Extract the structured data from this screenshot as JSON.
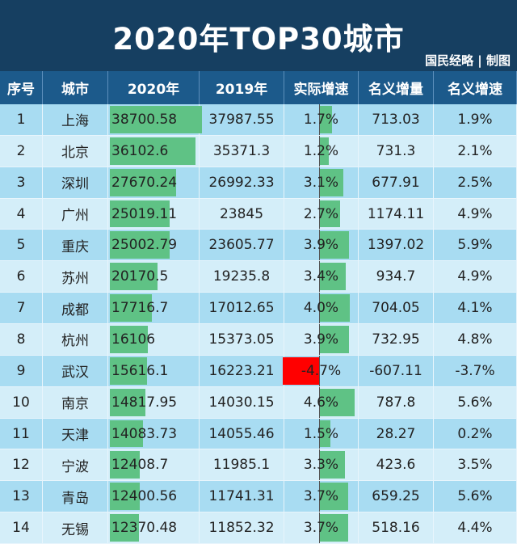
{
  "title": "2020年TOP30城市",
  "credit": "国民经略 | 制图",
  "headers": [
    "序号",
    "城市",
    "2020年",
    "2019年",
    "实际增速",
    "名义增量",
    "名义增速"
  ],
  "colors": {
    "positive_bar": "#5fc285",
    "negative_bar": "#ff0000",
    "header_bg": "#1c5a8b",
    "title_bg": "#163f61"
  },
  "rows": [
    {
      "rank": "1",
      "city": "上海",
      "gdp2020": "38700.58",
      "gdp2019": "37987.55",
      "real_growth": "1.7%",
      "real_growth_value": 1.7,
      "nominal_increase": "713.03",
      "nominal_growth": "1.9%"
    },
    {
      "rank": "2",
      "city": "北京",
      "gdp2020": "36102.6",
      "gdp2019": "35371.3",
      "real_growth": "1.2%",
      "real_growth_value": 1.2,
      "nominal_increase": "731.3",
      "nominal_growth": "2.1%"
    },
    {
      "rank": "3",
      "city": "深圳",
      "gdp2020": "27670.24",
      "gdp2019": "26992.33",
      "real_growth": "3.1%",
      "real_growth_value": 3.1,
      "nominal_increase": "677.91",
      "nominal_growth": "2.5%"
    },
    {
      "rank": "4",
      "city": "广州",
      "gdp2020": "25019.11",
      "gdp2019": "23845",
      "real_growth": "2.7%",
      "real_growth_value": 2.7,
      "nominal_increase": "1174.11",
      "nominal_growth": "4.9%"
    },
    {
      "rank": "5",
      "city": "重庆",
      "gdp2020": "25002.79",
      "gdp2019": "23605.77",
      "real_growth": "3.9%",
      "real_growth_value": 3.9,
      "nominal_increase": "1397.02",
      "nominal_growth": "5.9%"
    },
    {
      "rank": "6",
      "city": "苏州",
      "gdp2020": "20170.5",
      "gdp2019": "19235.8",
      "real_growth": "3.4%",
      "real_growth_value": 3.4,
      "nominal_increase": "934.7",
      "nominal_growth": "4.9%"
    },
    {
      "rank": "7",
      "city": "成都",
      "gdp2020": "17716.7",
      "gdp2019": "17012.65",
      "real_growth": "4.0%",
      "real_growth_value": 4.0,
      "nominal_increase": "704.05",
      "nominal_growth": "4.1%"
    },
    {
      "rank": "8",
      "city": "杭州",
      "gdp2020": "16106",
      "gdp2019": "15373.05",
      "real_growth": "3.9%",
      "real_growth_value": 3.9,
      "nominal_increase": "732.95",
      "nominal_growth": "4.8%"
    },
    {
      "rank": "9",
      "city": "武汉",
      "gdp2020": "15616.1",
      "gdp2019": "16223.21",
      "real_growth": "-4.7%",
      "real_growth_value": -4.7,
      "nominal_increase": "-607.11",
      "nominal_growth": "-3.7%"
    },
    {
      "rank": "10",
      "city": "南京",
      "gdp2020": "14817.95",
      "gdp2019": "14030.15",
      "real_growth": "4.6%",
      "real_growth_value": 4.6,
      "nominal_increase": "787.8",
      "nominal_growth": "5.6%"
    },
    {
      "rank": "11",
      "city": "天津",
      "gdp2020": "14083.73",
      "gdp2019": "14055.46",
      "real_growth": "1.5%",
      "real_growth_value": 1.5,
      "nominal_increase": "28.27",
      "nominal_growth": "0.2%"
    },
    {
      "rank": "12",
      "city": "宁波",
      "gdp2020": "12408.7",
      "gdp2019": "11985.1",
      "real_growth": "3.3%",
      "real_growth_value": 3.3,
      "nominal_increase": "423.6",
      "nominal_growth": "3.5%"
    },
    {
      "rank": "13",
      "city": "青岛",
      "gdp2020": "12400.56",
      "gdp2019": "11741.31",
      "real_growth": "3.7%",
      "real_growth_value": 3.7,
      "nominal_increase": "659.25",
      "nominal_growth": "5.6%"
    },
    {
      "rank": "14",
      "city": "无锡",
      "gdp2020": "12370.48",
      "gdp2019": "11852.32",
      "real_growth": "3.7%",
      "real_growth_value": 3.7,
      "nominal_increase": "518.16",
      "nominal_growth": "4.4%"
    }
  ]
}
